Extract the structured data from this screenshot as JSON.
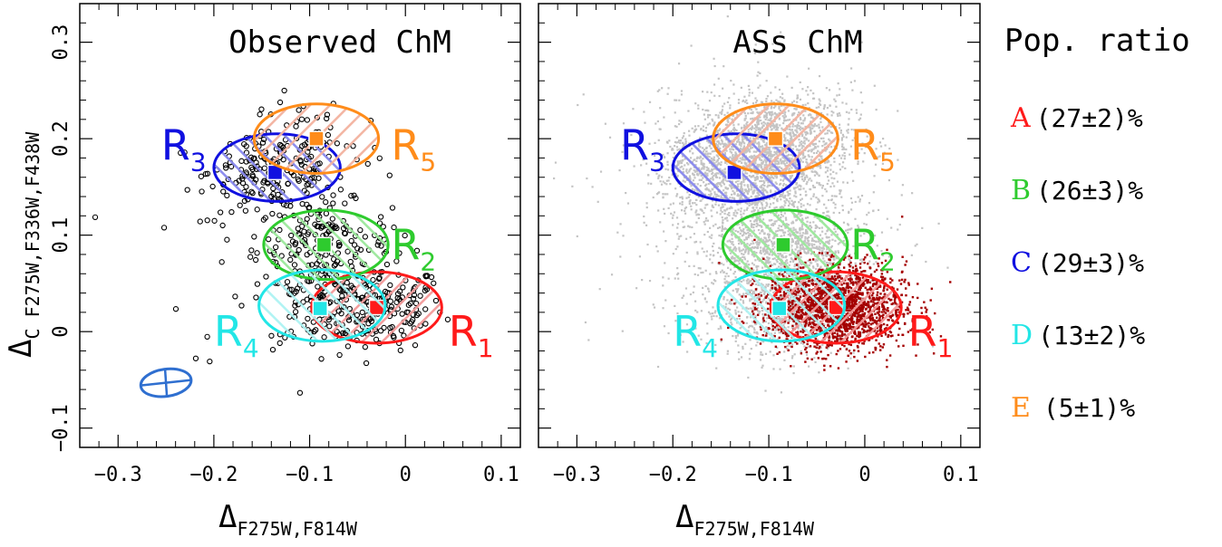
{
  "chart_data": [
    {
      "type": "scatter",
      "panel": "left",
      "title": "Observed ChM",
      "xlabel": "Δ",
      "xlabel_sub": "F275W,F814W",
      "ylabel": "Δ",
      "ylabel_sub": "C F275W,F336W,F438W",
      "xlim": [
        -0.34,
        0.12
      ],
      "ylim": [
        -0.12,
        0.34
      ],
      "xticks": [
        -0.3,
        -0.2,
        -0.1,
        0,
        0.1
      ],
      "xtick_labels": [
        "−0.3",
        "−0.2",
        "−0.1",
        "0",
        "0.1"
      ],
      "yticks": [
        -0.1,
        0,
        0.1,
        0.2,
        0.3
      ],
      "ytick_labels": [
        "−0.1",
        "0",
        "0.1",
        "0.2",
        "0.3"
      ],
      "points_note": "open black circles, ~750 stars",
      "error_ellipse": {
        "x": -0.25,
        "y": -0.053,
        "color": "#2f6fd0"
      }
    },
    {
      "type": "scatter",
      "panel": "right",
      "title": "ASs ChM",
      "xlabel": "Δ",
      "xlabel_sub": "F275W,F814W",
      "xlim": [
        -0.34,
        0.12
      ],
      "ylim": [
        -0.12,
        0.34
      ],
      "xticks": [
        -0.3,
        -0.2,
        -0.1,
        0,
        0.1
      ],
      "xtick_labels": [
        "−0.3",
        "−0.2",
        "−0.1",
        "0",
        "0.1"
      ],
      "points_note": "grey artificial stars with dark red population 1 stars"
    }
  ],
  "regions": [
    {
      "id": "R1",
      "label": "R",
      "sub": "1",
      "color": "#ff1a1a",
      "hatch": "#f39a9a",
      "cx": -0.03,
      "cy": 0.025,
      "rx": 0.068,
      "ry": 0.037,
      "marker": [
        -0.03,
        0.025
      ],
      "label_pos": [
        0.045,
        0.0
      ]
    },
    {
      "id": "R2",
      "label": "R",
      "sub": "2",
      "color": "#2ecb2e",
      "hatch": "#9be89b",
      "cx": -0.083,
      "cy": 0.09,
      "rx": 0.065,
      "ry": 0.036,
      "marker": [
        -0.085,
        0.09
      ],
      "label_pos": [
        -0.015,
        0.09
      ]
    },
    {
      "id": "R3",
      "label": "R",
      "sub": "3",
      "color": "#1010e0",
      "hatch": "#8888ee",
      "cx": -0.134,
      "cy": 0.17,
      "rx": 0.066,
      "ry": 0.035,
      "marker": [
        -0.136,
        0.165
      ],
      "label_pos": [
        -0.255,
        0.193
      ]
    },
    {
      "id": "R4",
      "label": "R",
      "sub": "4",
      "color": "#22e6e6",
      "hatch": "#aef3f3",
      "cx": -0.087,
      "cy": 0.027,
      "rx": 0.066,
      "ry": 0.037,
      "marker": [
        -0.089,
        0.024
      ],
      "label_pos": [
        -0.2,
        0.0
      ]
    },
    {
      "id": "R5",
      "label": "R",
      "sub": "5",
      "color": "#ff8c1a",
      "hatch": "#f3b3a0",
      "cx": -0.093,
      "cy": 0.2,
      "rx": 0.065,
      "ry": 0.036,
      "marker": [
        -0.093,
        0.2
      ],
      "label_pos": [
        -0.015,
        0.193
      ]
    }
  ],
  "legend": {
    "title": "Pop. ratio",
    "entries": [
      {
        "letter": "A",
        "value": "(27±2)%",
        "color": "#ff1a1a"
      },
      {
        "letter": "B",
        "value": "(26±3)%",
        "color": "#2ecb2e"
      },
      {
        "letter": "C",
        "value": "(29±3)%",
        "color": "#1010e0"
      },
      {
        "letter": "D",
        "value": "(13±2)%",
        "color": "#22e6e6"
      },
      {
        "letter": "E",
        "value": "(5±1)%",
        "color": "#ff8c1a"
      }
    ]
  }
}
